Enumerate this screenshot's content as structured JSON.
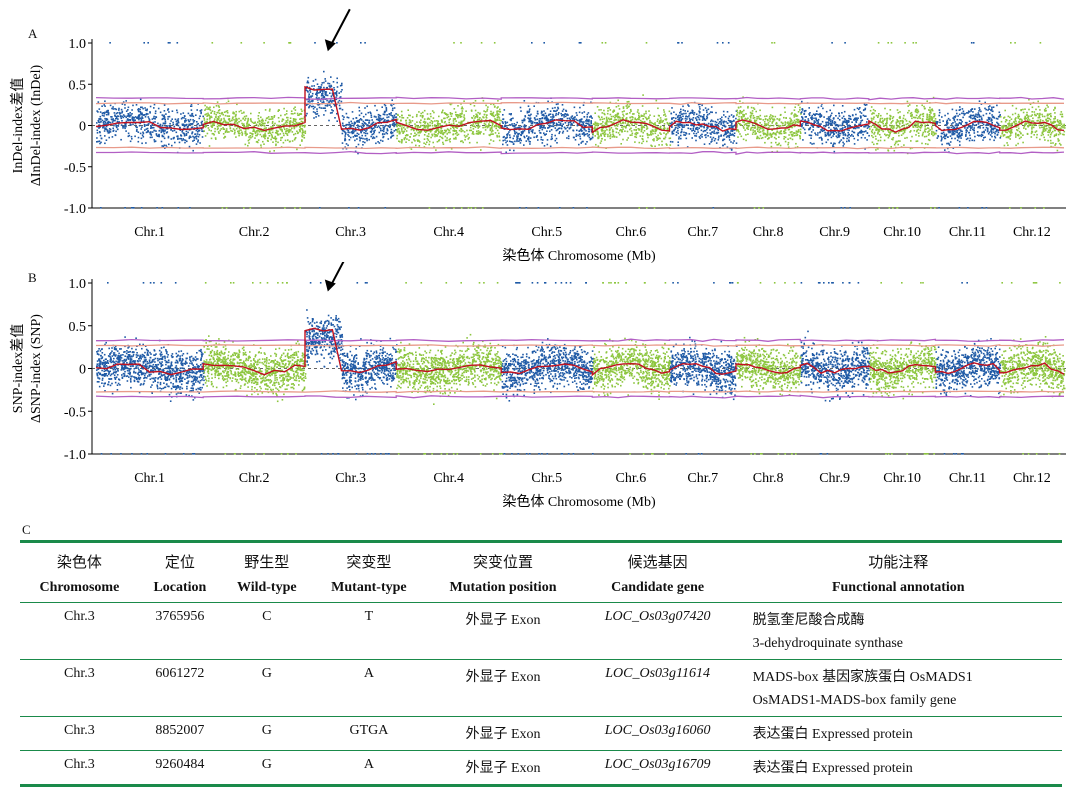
{
  "chart_data": [
    {
      "type": "scatter",
      "panel": "A",
      "ylabel_line1": "InDel-index差值",
      "ylabel_line2": "ΔInDel-index (InDel)",
      "xlabel": "染色体 Chromosome (Mb)",
      "ylim": [
        -1.0,
        1.0
      ],
      "yticks": [
        "1.0",
        "0.5",
        "0",
        "-0.5",
        "-1.0"
      ],
      "categories": [
        "Chr.1",
        "Chr.2",
        "Chr.3",
        "Chr.4",
        "Chr.5",
        "Chr.6",
        "Chr.7",
        "Chr.8",
        "Chr.9",
        "Chr.10",
        "Chr.11",
        "Chr.12"
      ],
      "chromosome_colors": [
        "#1f5aa6",
        "#8dc63f",
        "#1f5aa6",
        "#8dc63f",
        "#1f5aa6",
        "#8dc63f",
        "#1f5aa6",
        "#8dc63f",
        "#1f5aa6",
        "#8dc63f",
        "#1f5aa6",
        "#8dc63f"
      ],
      "smoothed_peak_chromosome": "Chr.3",
      "threshold_99": 0.33,
      "threshold_95": 0.27,
      "arrow_marker": "Chr.3"
    },
    {
      "type": "scatter",
      "panel": "B",
      "ylabel_line1": "SNP-index差值",
      "ylabel_line2": "ΔSNP-index (SNP)",
      "xlabel": "染色体 Chromosome (Mb)",
      "ylim": [
        -1.0,
        1.0
      ],
      "yticks": [
        "1.0",
        "0.5",
        "0",
        "-0.5",
        "-1.0"
      ],
      "categories": [
        "Chr.1",
        "Chr.2",
        "Chr.3",
        "Chr.4",
        "Chr.5",
        "Chr.6",
        "Chr.7",
        "Chr.8",
        "Chr.9",
        "Chr.10",
        "Chr.11",
        "Chr.12"
      ],
      "chromosome_colors": [
        "#1f5aa6",
        "#8dc63f",
        "#1f5aa6",
        "#8dc63f",
        "#1f5aa6",
        "#8dc63f",
        "#1f5aa6",
        "#8dc63f",
        "#1f5aa6",
        "#8dc63f",
        "#1f5aa6",
        "#8dc63f"
      ],
      "smoothed_peak_chromosome": "Chr.3",
      "threshold_99": 0.33,
      "threshold_95": 0.27,
      "arrow_marker": "Chr.3"
    }
  ],
  "colors": {
    "blue": "#1f5aa6",
    "green": "#8dc63f",
    "smooth_line": "#c0111f",
    "threshold_99": "#b25fc4",
    "threshold_95": "#e89a8a",
    "rule_green": "#1a8a4a"
  },
  "panels": {
    "a": "A",
    "b": "B",
    "c": "C"
  },
  "table": {
    "headers_zh": [
      "染色体",
      "定位",
      "野生型",
      "突变型",
      "突变位置",
      "候选基因",
      "功能注释"
    ],
    "headers_en": [
      "Chromosome",
      "Location",
      "Wild-type",
      "Mutant-type",
      "Mutation position",
      "Candidate gene",
      "Functional annotation"
    ],
    "rows": [
      {
        "chromosome": "Chr.3",
        "location": "3765956",
        "wild": "C",
        "mutant": "T",
        "position": "外显子 Exon",
        "gene": "LOC_Os03g07420",
        "func1": "脱氢奎尼酸合成酶",
        "func2": "3-dehydroquinate synthase"
      },
      {
        "chromosome": "Chr.3",
        "location": "6061272",
        "wild": "G",
        "mutant": "A",
        "position": "外显子 Exon",
        "gene": "LOC_Os03g11614",
        "func1": "MADS-box 基因家族蛋白 OsMADS1",
        "func2": "OsMADS1-MADS-box family gene"
      },
      {
        "chromosome": "Chr.3",
        "location": "8852007",
        "wild": "G",
        "mutant": "GTGA",
        "position": "外显子 Exon",
        "gene": "LOC_Os03g16060",
        "func1": "表达蛋白 Expressed protein",
        "func2": ""
      },
      {
        "chromosome": "Chr.3",
        "location": "9260484",
        "wild": "G",
        "mutant": "A",
        "position": "外显子 Exon",
        "gene": "LOC_Os03g16709",
        "func1": "表达蛋白 Expressed protein",
        "func2": ""
      }
    ]
  }
}
